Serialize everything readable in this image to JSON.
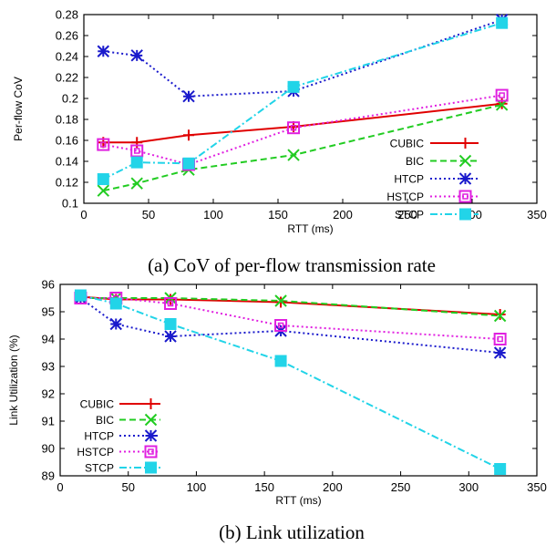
{
  "series_colors": {
    "CUBIC": "#e00000",
    "BIC": "#22cc22",
    "HTCP": "#1a1acc",
    "HSTCP": "#e020e0",
    "STCP": "#22d4e8"
  },
  "chart_data": [
    {
      "type": "line",
      "caption": "(a) CoV of per-flow transmission rate",
      "xlabel": "RTT (ms)",
      "ylabel": "Per-flow CoV",
      "xlim": [
        0,
        350
      ],
      "ylim": [
        0.1,
        0.28
      ],
      "xticks": [
        "0",
        "50",
        "100",
        "150",
        "200",
        "250",
        "300",
        "350"
      ],
      "xtick_values": [
        0,
        50,
        100,
        150,
        200,
        250,
        300,
        350
      ],
      "yticks": [
        "0.1",
        "0.12",
        "0.14",
        "0.16",
        "0.18",
        "0.2",
        "0.22",
        "0.24",
        "0.26",
        "0.28"
      ],
      "ytick_values": [
        0.1,
        0.12,
        0.14,
        0.16,
        0.18,
        0.2,
        0.22,
        0.24,
        0.26,
        0.28
      ],
      "legend_position": "right",
      "grid": false,
      "x": [
        15,
        41,
        81,
        162,
        323
      ],
      "series": [
        {
          "name": "CUBIC",
          "marker": "plus",
          "dash": "solid",
          "values": [
            0.158,
            0.158,
            0.165,
            0.173,
            0.195
          ]
        },
        {
          "name": "BIC",
          "marker": "cross",
          "dash": "dashed",
          "values": [
            0.112,
            0.119,
            0.132,
            0.146,
            0.194
          ]
        },
        {
          "name": "HTCP",
          "marker": "star",
          "dash": "dotted",
          "values": [
            0.245,
            0.241,
            0.202,
            0.207,
            0.275
          ]
        },
        {
          "name": "HSTCP",
          "marker": "open-square",
          "dash": "dotted",
          "values": [
            0.156,
            0.15,
            0.137,
            0.172,
            0.203
          ]
        },
        {
          "name": "STCP",
          "marker": "filled-square",
          "dash": "dashdot",
          "values": [
            0.123,
            0.139,
            0.138,
            0.211,
            0.272
          ]
        }
      ]
    },
    {
      "type": "line",
      "caption": "(b) Link utilization",
      "xlabel": "RTT (ms)",
      "ylabel": "Link Utilization (%)",
      "xlim": [
        0,
        350
      ],
      "ylim": [
        89,
        96
      ],
      "xticks": [
        "0",
        "50",
        "100",
        "150",
        "200",
        "250",
        "300",
        "350"
      ],
      "xtick_values": [
        0,
        50,
        100,
        150,
        200,
        250,
        300,
        350
      ],
      "yticks": [
        "89",
        "90",
        "91",
        "92",
        "93",
        "94",
        "95",
        "96"
      ],
      "ytick_values": [
        89,
        90,
        91,
        92,
        93,
        94,
        95,
        96
      ],
      "legend_position": "left",
      "grid": false,
      "x": [
        15,
        41,
        81,
        162,
        323
      ],
      "series": [
        {
          "name": "CUBIC",
          "marker": "plus",
          "dash": "solid",
          "values": [
            95.55,
            95.45,
            95.45,
            95.35,
            94.9
          ]
        },
        {
          "name": "BIC",
          "marker": "cross",
          "dash": "dashed",
          "values": [
            95.5,
            95.5,
            95.5,
            95.4,
            94.85
          ]
        },
        {
          "name": "HTCP",
          "marker": "star",
          "dash": "dotted",
          "values": [
            95.5,
            94.55,
            94.1,
            94.3,
            93.5
          ]
        },
        {
          "name": "HSTCP",
          "marker": "open-square",
          "dash": "dotted",
          "values": [
            95.5,
            95.5,
            95.3,
            94.5,
            94.0
          ]
        },
        {
          "name": "STCP",
          "marker": "filled-square",
          "dash": "dashdot",
          "values": [
            95.6,
            95.3,
            94.55,
            93.2,
            89.25
          ]
        }
      ]
    }
  ]
}
